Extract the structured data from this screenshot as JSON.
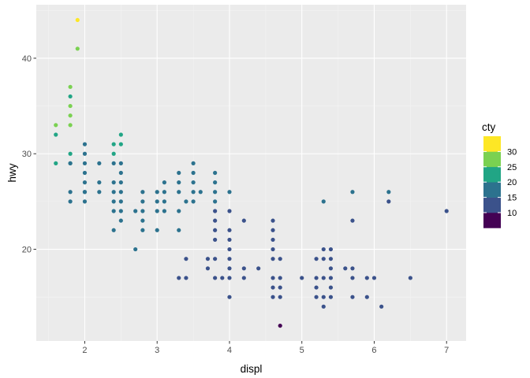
{
  "chart_data": {
    "type": "scatter",
    "title": "",
    "xlabel": "displ",
    "ylabel": "hwy",
    "xlim": [
      1.33,
      7.27
    ],
    "ylim": [
      10.4,
      45.6
    ],
    "xticks": [
      2,
      3,
      4,
      5,
      6,
      7
    ],
    "yticks": [
      20,
      30,
      40
    ],
    "grid": true,
    "legend": {
      "title": "cty",
      "position": "right",
      "bins": [
        {
          "label": "10",
          "color": "#440154"
        },
        {
          "label": "15",
          "color": "#3b528b"
        },
        {
          "label": "20",
          "color": "#2c728e"
        },
        {
          "label": "25",
          "color": "#21a585"
        },
        {
          "label": "30",
          "color": "#7ad151"
        },
        {
          "label": "",
          "color": "#fde725"
        }
      ],
      "tick_labels": [
        "10",
        "15",
        "20",
        "25",
        "30"
      ]
    },
    "colors": {
      "panel": "#ebebeb",
      "grid_major": "#ffffff",
      "grid_minor": "#f4f4f4",
      "c1": "#440154",
      "c2": "#3b528b",
      "c3": "#2c728e",
      "c4": "#21a585",
      "c5": "#7ad151",
      "c6": "#fde725"
    },
    "points": [
      [
        1.6,
        33,
        5
      ],
      [
        1.6,
        32,
        4
      ],
      [
        1.6,
        29,
        4
      ],
      [
        1.8,
        37,
        5
      ],
      [
        1.8,
        36,
        4
      ],
      [
        1.8,
        35,
        5
      ],
      [
        1.8,
        34,
        5
      ],
      [
        1.8,
        33,
        5
      ],
      [
        1.8,
        30,
        4
      ],
      [
        1.8,
        29,
        4
      ],
      [
        1.8,
        29,
        3
      ],
      [
        1.8,
        26,
        3
      ],
      [
        1.8,
        25,
        3
      ],
      [
        1.9,
        44,
        6
      ],
      [
        1.9,
        41,
        5
      ],
      [
        2.0,
        31,
        3
      ],
      [
        2.0,
        30,
        3
      ],
      [
        2.0,
        29,
        3
      ],
      [
        2.0,
        28,
        3
      ],
      [
        2.0,
        27,
        3
      ],
      [
        2.0,
        26,
        3
      ],
      [
        2.0,
        26,
        3
      ],
      [
        2.0,
        25,
        3
      ],
      [
        2.2,
        29,
        3
      ],
      [
        2.2,
        27,
        3
      ],
      [
        2.2,
        26,
        3
      ],
      [
        2.4,
        31,
        4
      ],
      [
        2.4,
        30,
        4
      ],
      [
        2.4,
        29,
        3
      ],
      [
        2.4,
        27,
        3
      ],
      [
        2.4,
        26,
        3
      ],
      [
        2.4,
        25,
        3
      ],
      [
        2.4,
        24,
        3
      ],
      [
        2.4,
        22,
        3
      ],
      [
        2.5,
        32,
        4
      ],
      [
        2.5,
        31,
        4
      ],
      [
        2.5,
        29,
        3
      ],
      [
        2.5,
        28,
        3
      ],
      [
        2.5,
        27,
        3
      ],
      [
        2.5,
        26,
        3
      ],
      [
        2.5,
        25,
        3
      ],
      [
        2.5,
        24,
        3
      ],
      [
        2.5,
        23,
        3
      ],
      [
        2.7,
        24,
        3
      ],
      [
        2.7,
        20,
        3
      ],
      [
        2.8,
        26,
        3
      ],
      [
        2.8,
        25,
        3
      ],
      [
        2.8,
        24,
        3
      ],
      [
        2.8,
        23,
        3
      ],
      [
        2.8,
        22,
        3
      ],
      [
        3.0,
        26,
        3
      ],
      [
        3.0,
        25,
        3
      ],
      [
        3.0,
        24,
        3
      ],
      [
        3.0,
        22,
        3
      ],
      [
        3.1,
        27,
        3
      ],
      [
        3.1,
        26,
        3
      ],
      [
        3.1,
        25,
        3
      ],
      [
        3.1,
        24,
        3
      ],
      [
        3.3,
        28,
        3
      ],
      [
        3.3,
        27,
        3
      ],
      [
        3.3,
        26,
        3
      ],
      [
        3.3,
        24,
        3
      ],
      [
        3.3,
        22,
        3
      ],
      [
        3.3,
        17,
        2
      ],
      [
        3.4,
        25,
        3
      ],
      [
        3.4,
        19,
        2
      ],
      [
        3.4,
        17,
        2
      ],
      [
        3.5,
        29,
        3
      ],
      [
        3.5,
        28,
        3
      ],
      [
        3.5,
        27,
        3
      ],
      [
        3.5,
        26,
        3
      ],
      [
        3.5,
        25,
        3
      ],
      [
        3.6,
        26,
        3
      ],
      [
        3.7,
        19,
        2
      ],
      [
        3.7,
        18,
        2
      ],
      [
        3.8,
        28,
        3
      ],
      [
        3.8,
        27,
        3
      ],
      [
        3.8,
        26,
        3
      ],
      [
        3.8,
        25,
        3
      ],
      [
        3.8,
        24,
        2
      ],
      [
        3.8,
        23,
        2
      ],
      [
        3.8,
        22,
        2
      ],
      [
        3.8,
        21,
        2
      ],
      [
        3.8,
        19,
        2
      ],
      [
        3.8,
        17,
        2
      ],
      [
        3.9,
        17,
        2
      ],
      [
        4.0,
        26,
        3
      ],
      [
        4.0,
        24,
        2
      ],
      [
        4.0,
        22,
        2
      ],
      [
        4.0,
        21,
        2
      ],
      [
        4.0,
        20,
        2
      ],
      [
        4.0,
        19,
        2
      ],
      [
        4.0,
        18,
        2
      ],
      [
        4.0,
        17,
        2
      ],
      [
        4.0,
        15,
        2
      ],
      [
        4.2,
        23,
        2
      ],
      [
        4.2,
        18,
        2
      ],
      [
        4.2,
        17,
        2
      ],
      [
        4.4,
        18,
        2
      ],
      [
        4.6,
        23,
        2
      ],
      [
        4.6,
        22,
        2
      ],
      [
        4.6,
        21,
        2
      ],
      [
        4.6,
        20,
        2
      ],
      [
        4.6,
        19,
        2
      ],
      [
        4.6,
        17,
        2
      ],
      [
        4.6,
        16,
        2
      ],
      [
        4.6,
        15,
        2
      ],
      [
        4.7,
        19,
        2
      ],
      [
        4.7,
        17,
        2
      ],
      [
        4.7,
        16,
        2
      ],
      [
        4.7,
        15,
        2
      ],
      [
        4.7,
        12,
        1
      ],
      [
        5.0,
        17,
        2
      ],
      [
        5.2,
        19,
        2
      ],
      [
        5.2,
        17,
        2
      ],
      [
        5.2,
        16,
        2
      ],
      [
        5.2,
        15,
        2
      ],
      [
        5.3,
        25,
        3
      ],
      [
        5.3,
        20,
        2
      ],
      [
        5.3,
        19,
        2
      ],
      [
        5.3,
        17,
        2
      ],
      [
        5.3,
        15,
        2
      ],
      [
        5.3,
        14,
        2
      ],
      [
        5.4,
        20,
        2
      ],
      [
        5.4,
        19,
        2
      ],
      [
        5.4,
        18,
        2
      ],
      [
        5.4,
        17,
        2
      ],
      [
        5.4,
        16,
        2
      ],
      [
        5.4,
        15,
        2
      ],
      [
        5.6,
        18,
        2
      ],
      [
        5.7,
        26,
        3
      ],
      [
        5.7,
        23,
        2
      ],
      [
        5.7,
        18,
        2
      ],
      [
        5.7,
        17,
        2
      ],
      [
        5.7,
        15,
        2
      ],
      [
        5.9,
        17,
        2
      ],
      [
        5.9,
        15,
        2
      ],
      [
        6.0,
        17,
        2
      ],
      [
        6.1,
        14,
        2
      ],
      [
        6.2,
        26,
        3
      ],
      [
        6.2,
        25,
        2
      ],
      [
        6.5,
        17,
        2
      ],
      [
        7.0,
        24,
        2
      ]
    ]
  }
}
